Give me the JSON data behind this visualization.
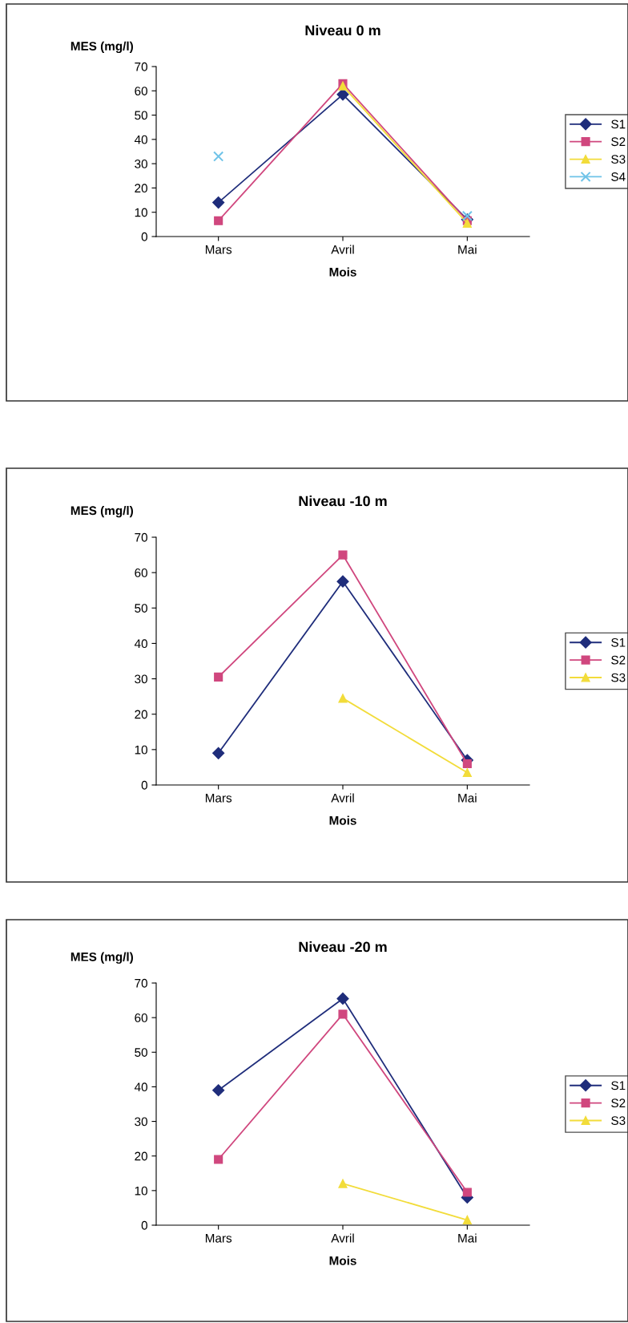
{
  "chart_data": [
    {
      "type": "line",
      "title": "Niveau 0 m",
      "ylabel": "MES (mg/l)",
      "xlabel": "Mois",
      "categories": [
        "Mars",
        "Avril",
        "Mai"
      ],
      "ylim": [
        0,
        70
      ],
      "yticks": [
        0,
        10,
        20,
        30,
        40,
        50,
        60,
        70
      ],
      "grid": false,
      "legend": "right",
      "series": [
        {
          "name": "S1",
          "color": "#1f2d7b",
          "marker": "diamond",
          "values": [
            14,
            58.5,
            7
          ]
        },
        {
          "name": "S2",
          "color": "#d0477e",
          "marker": "square",
          "values": [
            6.5,
            63,
            6.5
          ]
        },
        {
          "name": "S3",
          "color": "#f2dc3a",
          "marker": "triangle",
          "values": [
            null,
            62,
            5.5
          ]
        },
        {
          "name": "S4",
          "color": "#6fc3e8",
          "marker": "cross",
          "values": [
            33,
            null,
            8.5
          ]
        }
      ]
    },
    {
      "type": "line",
      "title": "Niveau -10 m",
      "ylabel": "MES (mg/l)",
      "xlabel": "Mois",
      "categories": [
        "Mars",
        "Avril",
        "Mai"
      ],
      "ylim": [
        0,
        70
      ],
      "yticks": [
        0,
        10,
        20,
        30,
        40,
        50,
        60,
        70
      ],
      "grid": false,
      "legend": "right",
      "series": [
        {
          "name": "S1",
          "color": "#1f2d7b",
          "marker": "diamond",
          "values": [
            9,
            57.5,
            7
          ]
        },
        {
          "name": "S2",
          "color": "#d0477e",
          "marker": "square",
          "values": [
            30.5,
            65,
            6
          ]
        },
        {
          "name": "S3",
          "color": "#f2dc3a",
          "marker": "triangle",
          "values": [
            null,
            24.5,
            3.5
          ]
        }
      ]
    },
    {
      "type": "line",
      "title": "Niveau -20 m",
      "ylabel": "MES (mg/l)",
      "xlabel": "Mois",
      "categories": [
        "Mars",
        "Avril",
        "Mai"
      ],
      "ylim": [
        0,
        70
      ],
      "yticks": [
        0,
        10,
        20,
        30,
        40,
        50,
        60,
        70
      ],
      "grid": false,
      "legend": "right",
      "series": [
        {
          "name": "S1",
          "color": "#1f2d7b",
          "marker": "diamond",
          "values": [
            39,
            65.5,
            8
          ]
        },
        {
          "name": "S2",
          "color": "#d0477e",
          "marker": "square",
          "values": [
            19,
            61,
            9.5
          ]
        },
        {
          "name": "S3",
          "color": "#f2dc3a",
          "marker": "triangle",
          "values": [
            null,
            12,
            1.5
          ]
        }
      ]
    }
  ]
}
